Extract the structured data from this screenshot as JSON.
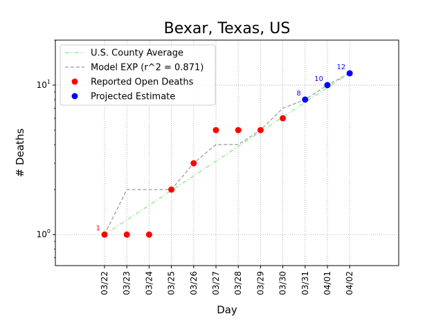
{
  "chart_data": {
    "type": "line",
    "title": "Bexar, Texas, US",
    "xlabel": "Day",
    "ylabel": "# Deaths",
    "yscale": "log",
    "ylim": [
      0.62,
      20
    ],
    "y_ticks": [
      {
        "value": 1,
        "base": "10",
        "exp": "0"
      },
      {
        "value": 10,
        "base": "10",
        "exp": "1"
      }
    ],
    "grid": true,
    "legend_position": "top-left",
    "categories": [
      "03/22",
      "03/23",
      "03/24",
      "03/25",
      "03/26",
      "03/27",
      "03/28",
      "03/29",
      "03/30",
      "03/31",
      "04/01",
      "04/02"
    ],
    "series": [
      {
        "name": "U.S. County Average",
        "kind": "line",
        "style": "dashdot",
        "color": "#90ee90",
        "values": [
          1,
          1.25,
          1.57,
          1.97,
          2.47,
          3.1,
          3.89,
          4.88,
          6.12,
          7.68,
          9.63,
          12.1
        ]
      },
      {
        "name": "Model EXP (r^2 = 0.871)",
        "kind": "line",
        "style": "dashed",
        "color": "#a9a9a9",
        "values": [
          1,
          2,
          2,
          2,
          3,
          4,
          4,
          5,
          7,
          8,
          10,
          12
        ]
      },
      {
        "name": "Reported Open Deaths",
        "kind": "points",
        "color": "#ff0000",
        "values": [
          1,
          1,
          1,
          2,
          3,
          5,
          5,
          5,
          6,
          null,
          null,
          null
        ]
      },
      {
        "name": "Projected Estimate",
        "kind": "points",
        "color": "#0000ff",
        "values": [
          null,
          null,
          null,
          null,
          null,
          null,
          null,
          null,
          null,
          8,
          10,
          12
        ]
      }
    ],
    "annotations": [
      {
        "category": "03/22",
        "value": 1,
        "text": "1",
        "color": "#ff0000"
      },
      {
        "category": "03/31",
        "value": 8,
        "text": "8",
        "color": "#0000ff"
      },
      {
        "category": "04/01",
        "value": 10,
        "text": "10",
        "color": "#0000ff"
      },
      {
        "category": "04/02",
        "value": 12,
        "text": "12",
        "color": "#0000ff"
      }
    ]
  }
}
